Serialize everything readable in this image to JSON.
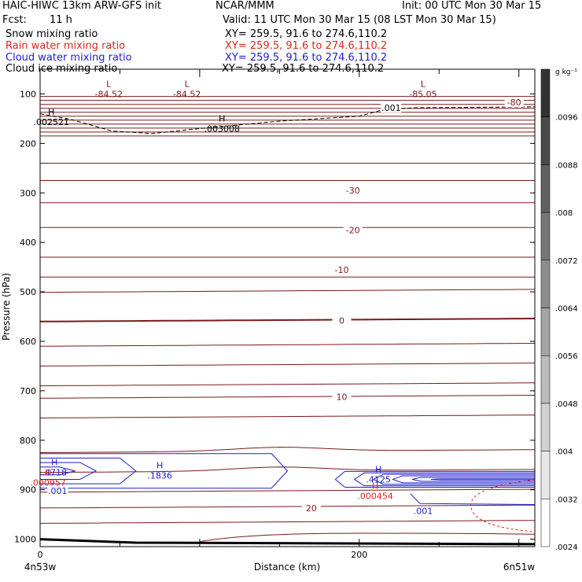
{
  "header": {
    "title": "HAIC-HIWC 13km ARW-GFS init",
    "center": "NCAR/MMM",
    "init": "Init: 00 UTC Mon 30 Mar 15",
    "fcst_label": "Fcst:",
    "fcst_value": "11 h",
    "valid": "Valid: 11 UTC Mon 30 Mar 15 (08 LST Mon 30 Mar 15)"
  },
  "fields": [
    {
      "name": "Snow mixing ratio",
      "xy": "XY= 259.5, 91.6 to 274.6,110.2",
      "color": "#000000"
    },
    {
      "name": "Rain water mixing ratio",
      "xy": "XY= 259.5, 91.6 to 274.6,110.2",
      "color": "#e0241c"
    },
    {
      "name": "Cloud water mixing ratio",
      "xy": "XY= 259.5, 91.6 to 274.6,110.2",
      "color": "#1e1ecf"
    },
    {
      "name": "Cloud ice mixing ratio",
      "xy": "XY= 259.5, 91.6 to 274.6,110.2",
      "color": "#000000"
    }
  ],
  "colors": {
    "temperature": "#7a1a1a",
    "rain": "#e0241c",
    "cloud_water": "#1e1ecf",
    "snow": "#000000"
  },
  "chart_data": {
    "type": "contour",
    "ylabel": "Pressure (hPa)",
    "xlabel": "Distance (km)",
    "x_range": [
      0,
      310
    ],
    "y_range": [
      50,
      1015
    ],
    "y_scale": "linear, inverted (pressure increases downward)",
    "y_ticks": [
      100,
      200,
      300,
      400,
      500,
      600,
      700,
      800,
      900,
      1000
    ],
    "x_ticks": [
      0,
      200
    ],
    "x_endpoints": [
      "4n53w",
      "6n51w"
    ],
    "colorbar": {
      "unit": "g kg⁻¹",
      "ticks": [
        ".0096",
        ".0088",
        ".008",
        ".0072",
        ".0064",
        ".0056",
        ".0048",
        ".004",
        ".0032",
        ".0024"
      ]
    },
    "temperature_labels": [
      {
        "text": "-80",
        "x": 297,
        "p": 117
      },
      {
        "text": "-30",
        "x": 196,
        "p": 295
      },
      {
        "text": "-20",
        "x": 196,
        "p": 375
      },
      {
        "text": "-10",
        "x": 189,
        "p": 455
      },
      {
        "text": "0",
        "x": 189,
        "p": 558
      },
      {
        "text": "10",
        "x": 189,
        "p": 712
      },
      {
        "text": "20",
        "x": 170,
        "p": 937
      }
    ],
    "extrema": [
      {
        "mark": "L",
        "value": "-84.52",
        "x": 43,
        "p": 102,
        "color": "temperature"
      },
      {
        "mark": "L",
        "value": "-84.52",
        "x": 92,
        "p": 102,
        "color": "temperature"
      },
      {
        "mark": "L",
        "value": "-85.05",
        "x": 240,
        "p": 102,
        "color": "temperature"
      },
      {
        "mark": "H",
        "value": ".002521",
        "x": 7,
        "p": 158,
        "color": "snow"
      },
      {
        "mark": "H",
        "value": ".003008",
        "x": 114,
        "p": 172,
        "color": "snow"
      },
      {
        "mark": "H",
        "value": ".4718",
        "x": 9,
        "p": 866,
        "color": "cloud_water"
      },
      {
        "mark": "H",
        "value": ".1836",
        "x": 75,
        "p": 873,
        "color": "cloud_water"
      },
      {
        "mark": "H",
        "value": ".4125",
        "x": 212,
        "p": 881,
        "color": "cloud_water"
      },
      {
        "mark": "H",
        "value": ".000957",
        "x": 5,
        "p": 887,
        "color": "rain"
      },
      {
        "mark": "H",
        "value": ".000454",
        "x": 210,
        "p": 914,
        "color": "rain"
      }
    ],
    "contour_labels": [
      {
        "text": ".001",
        "x": 220,
        "p": 128,
        "color": "snow"
      },
      {
        "text": ".001",
        "x": 11,
        "p": 902,
        "color": "cloud_water"
      },
      {
        "text": ".001",
        "x": 240,
        "p": 943,
        "color": "cloud_water"
      }
    ]
  }
}
